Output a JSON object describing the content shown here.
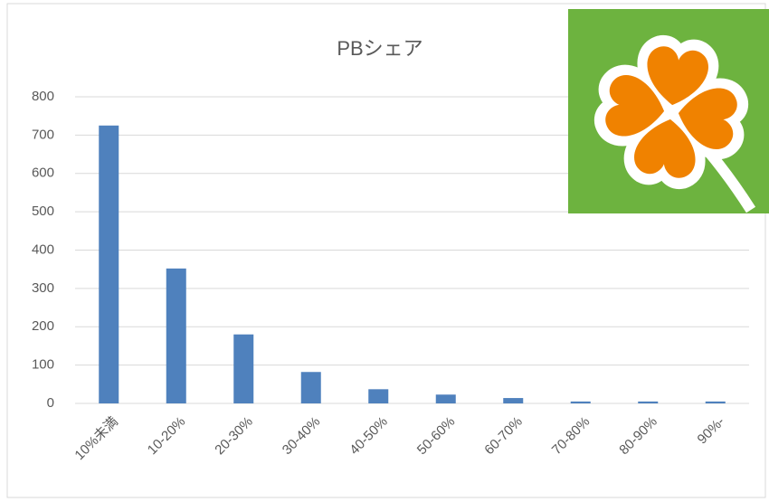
{
  "chart_data": {
    "type": "bar",
    "title": "PBシェア",
    "categories": [
      "10%未満",
      "10-20%",
      "20-30%",
      "30-40%",
      "40-50%",
      "50-60%",
      "60-70%",
      "70-80%",
      "80-90%",
      "90%-"
    ],
    "values": [
      725,
      352,
      180,
      82,
      37,
      23,
      14,
      5,
      5,
      5
    ],
    "color": "#4f81bd",
    "ylim": [
      0,
      800
    ],
    "yticks": [
      0,
      100,
      200,
      300,
      400,
      500,
      600,
      700,
      800
    ],
    "grid": true
  }
}
